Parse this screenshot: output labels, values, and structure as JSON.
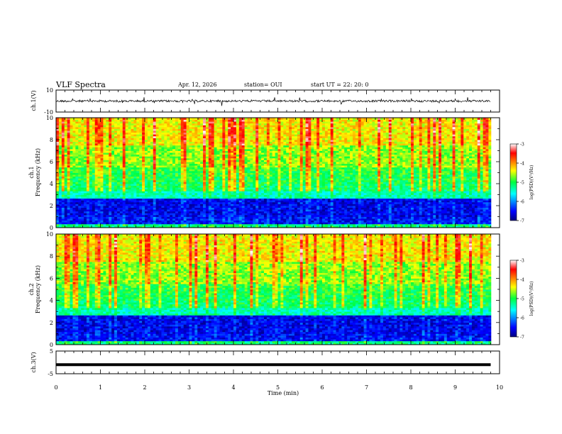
{
  "header": {
    "title": "VLF Spectra",
    "date": "Apr. 12, 2026",
    "station": "station= OUI",
    "start_time": "start  UT =   22: 20: 0"
  },
  "chart_data": [
    {
      "type": "line",
      "name": "ch.1 waveform",
      "ylabel": "ch.1(V)",
      "ylim": [
        -10,
        10
      ],
      "yticks": [
        "10",
        "-10"
      ],
      "xlim": [
        0,
        10
      ],
      "baseline_value": 0,
      "series_end_x": 9.8
    },
    {
      "type": "heatmap",
      "name": "ch.1 spectrogram",
      "ylabel": "ch.1\nFrequency (kHz)",
      "ylim": [
        0,
        10
      ],
      "yticks": [
        "0",
        "2",
        "4",
        "6",
        "8",
        "10"
      ],
      "xlim": [
        0,
        10
      ],
      "colorbar": {
        "label": "log(PSD)(V²/Hz)",
        "range": [
          -7,
          -3
        ],
        "ticks": [
          "-3",
          "-4",
          "-5",
          "-6",
          "-7"
        ]
      }
    },
    {
      "type": "heatmap",
      "name": "ch.2 spectrogram",
      "ylabel": "ch.2\nFrequency (kHz)",
      "ylim": [
        0,
        10
      ],
      "yticks": [
        "0",
        "2",
        "4",
        "6",
        "8",
        "10"
      ],
      "xlim": [
        0,
        10
      ],
      "colorbar": {
        "label": "log(PSD)(V²/Hz)",
        "range": [
          -7,
          -3
        ],
        "ticks": [
          "-3",
          "-4",
          "-5",
          "-6",
          "-7"
        ]
      }
    },
    {
      "type": "line",
      "name": "ch.3 waveform",
      "ylabel": "ch.3(V)",
      "ylim": [
        -5,
        5
      ],
      "yticks": [
        "5",
        "-5"
      ],
      "xlim": [
        0,
        10
      ],
      "baseline_value": -1,
      "series_end_x": 9.8
    }
  ],
  "xaxis": {
    "label": "Time (min)",
    "ticks": [
      "0",
      "1",
      "2",
      "3",
      "4",
      "5",
      "6",
      "7",
      "8",
      "9",
      "10"
    ]
  }
}
